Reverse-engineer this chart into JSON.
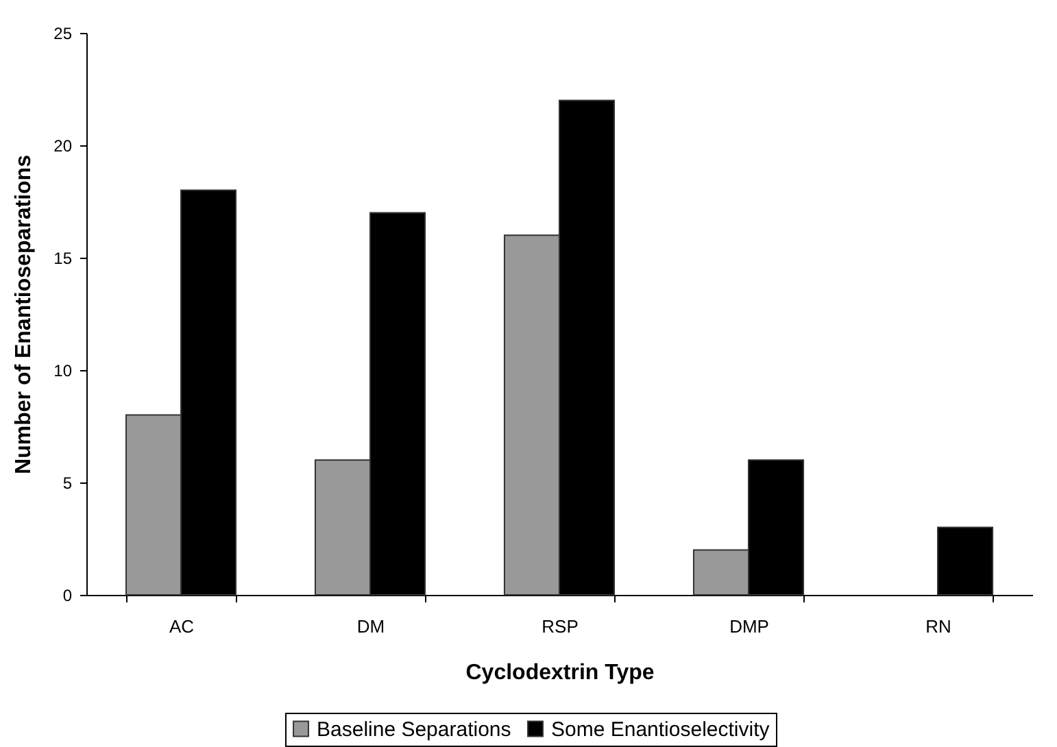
{
  "chart_data": {
    "type": "bar",
    "xlabel": "Cyclodextrin Type",
    "ylabel": "Number of Enantioseparations",
    "categories": [
      "AC",
      "DM",
      "RSP",
      "DMP",
      "RN"
    ],
    "series": [
      {
        "name": "Baseline Separations",
        "color": "#999999",
        "values": [
          8,
          6,
          16,
          2,
          0
        ]
      },
      {
        "name": "Some Enantioselectivity",
        "color": "#000000",
        "values": [
          18,
          17,
          22,
          6,
          3
        ]
      }
    ],
    "ylim": [
      0,
      25
    ],
    "yticks": [
      0,
      5,
      10,
      15,
      20,
      25
    ],
    "grid": false,
    "legend": "bottom"
  }
}
